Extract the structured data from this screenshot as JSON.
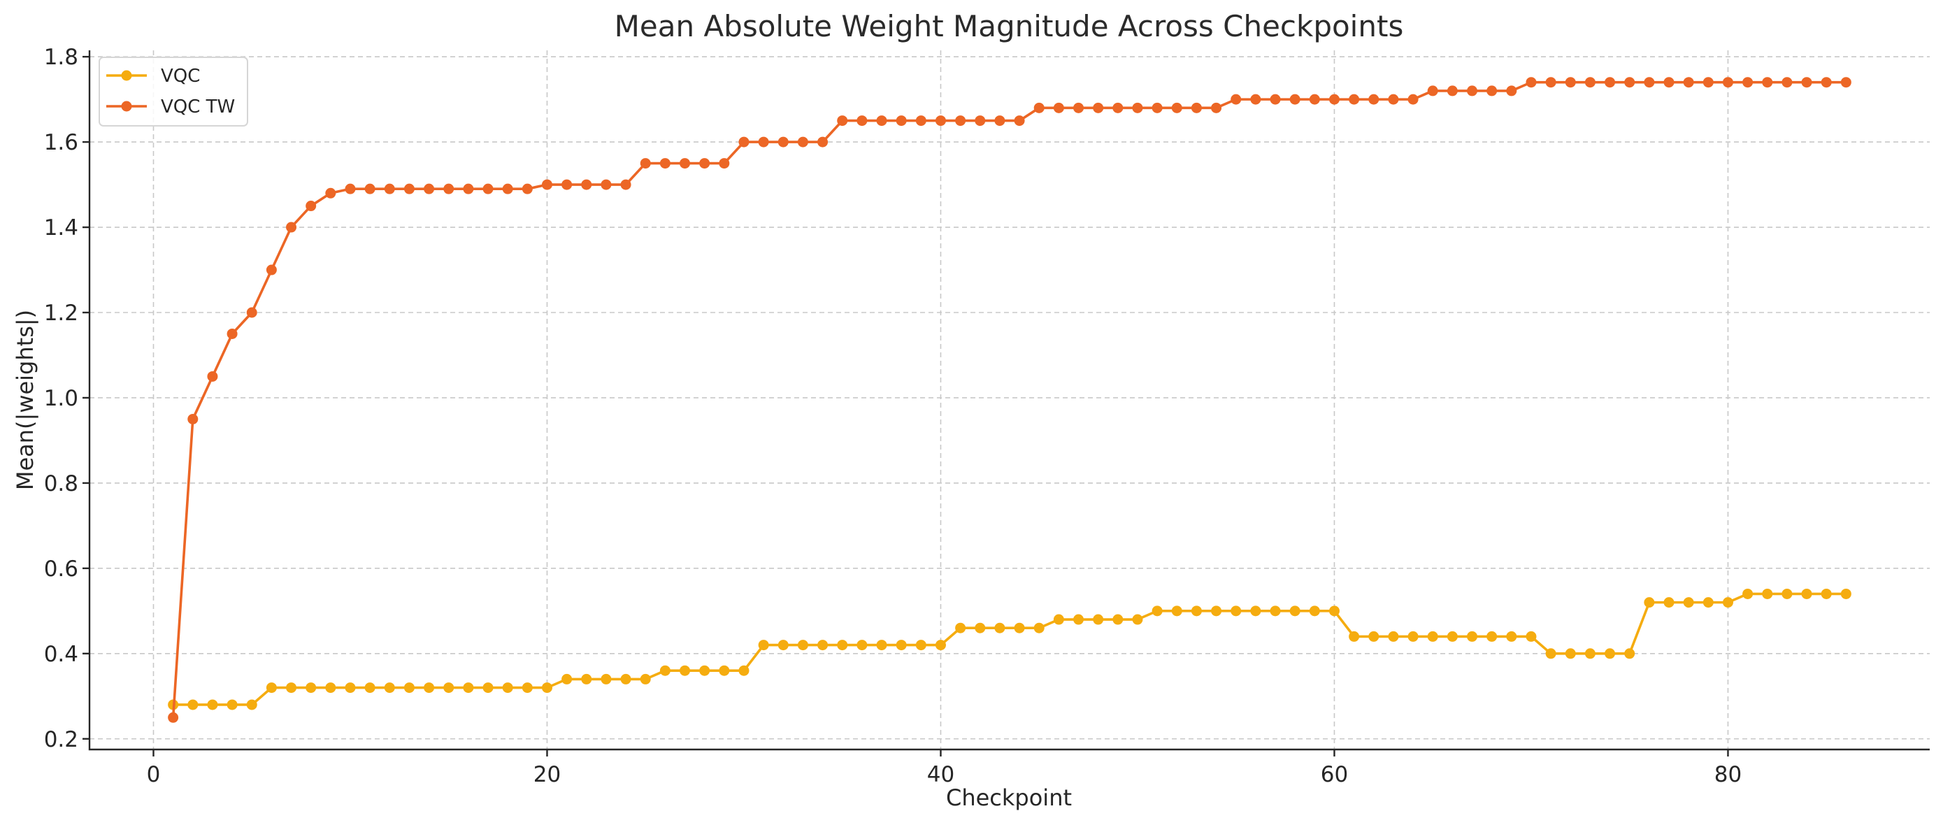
{
  "chart_data": {
    "type": "line",
    "title": "Mean Absolute Weight Magnitude Across Checkpoints",
    "xlabel": "Checkpoint",
    "ylabel": "Mean(|weights|)",
    "xlim": [
      -3.25,
      90.25
    ],
    "ylim": [
      0.175,
      1.815
    ],
    "xticks": [
      0,
      20,
      40,
      60,
      80
    ],
    "yticks": [
      0.2,
      0.4,
      0.6,
      0.8,
      1.0,
      1.2,
      1.4,
      1.6,
      1.8
    ],
    "xtick_labels": [
      "0",
      "20",
      "40",
      "60",
      "80"
    ],
    "ytick_labels": [
      "0.2",
      "0.4",
      "0.6",
      "0.8",
      "1.0",
      "1.2",
      "1.4",
      "1.6",
      "1.8"
    ],
    "grid": true,
    "legend_position": "top-left",
    "x": [
      1,
      2,
      3,
      4,
      5,
      6,
      7,
      8,
      9,
      10,
      11,
      12,
      13,
      14,
      15,
      16,
      17,
      18,
      19,
      20,
      21,
      22,
      23,
      24,
      25,
      26,
      27,
      28,
      29,
      30,
      31,
      32,
      33,
      34,
      35,
      36,
      37,
      38,
      39,
      40,
      41,
      42,
      43,
      44,
      45,
      46,
      47,
      48,
      49,
      50,
      51,
      52,
      53,
      54,
      55,
      56,
      57,
      58,
      59,
      60,
      61,
      62,
      63,
      64,
      65,
      66,
      67,
      68,
      69,
      70,
      71,
      72,
      73,
      74,
      75,
      76,
      77,
      78,
      79,
      80,
      81,
      82,
      83,
      84,
      85,
      86
    ],
    "series": [
      {
        "name": "VQC",
        "color": "#f5ac0f",
        "values": [
          0.28,
          0.28,
          0.28,
          0.28,
          0.28,
          0.32,
          0.32,
          0.32,
          0.32,
          0.32,
          0.32,
          0.32,
          0.32,
          0.32,
          0.32,
          0.32,
          0.32,
          0.32,
          0.32,
          0.32,
          0.34,
          0.34,
          0.34,
          0.34,
          0.34,
          0.36,
          0.36,
          0.36,
          0.36,
          0.36,
          0.42,
          0.42,
          0.42,
          0.42,
          0.42,
          0.42,
          0.42,
          0.42,
          0.42,
          0.42,
          0.46,
          0.46,
          0.46,
          0.46,
          0.46,
          0.48,
          0.48,
          0.48,
          0.48,
          0.48,
          0.5,
          0.5,
          0.5,
          0.5,
          0.5,
          0.5,
          0.5,
          0.5,
          0.5,
          0.5,
          0.44,
          0.44,
          0.44,
          0.44,
          0.44,
          0.44,
          0.44,
          0.44,
          0.44,
          0.44,
          0.4,
          0.4,
          0.4,
          0.4,
          0.4,
          0.52,
          0.52,
          0.52,
          0.52,
          0.52,
          0.54,
          0.54,
          0.54,
          0.54,
          0.54,
          0.54
        ]
      },
      {
        "name": "VQC TW",
        "color": "#ec6625",
        "values": [
          0.25,
          0.95,
          1.05,
          1.15,
          1.2,
          1.3,
          1.4,
          1.45,
          1.48,
          1.49,
          1.49,
          1.49,
          1.49,
          1.49,
          1.49,
          1.49,
          1.49,
          1.49,
          1.49,
          1.5,
          1.5,
          1.5,
          1.5,
          1.5,
          1.55,
          1.55,
          1.55,
          1.55,
          1.55,
          1.6,
          1.6,
          1.6,
          1.6,
          1.6,
          1.65,
          1.65,
          1.65,
          1.65,
          1.65,
          1.65,
          1.65,
          1.65,
          1.65,
          1.65,
          1.68,
          1.68,
          1.68,
          1.68,
          1.68,
          1.68,
          1.68,
          1.68,
          1.68,
          1.68,
          1.7,
          1.7,
          1.7,
          1.7,
          1.7,
          1.7,
          1.7,
          1.7,
          1.7,
          1.7,
          1.72,
          1.72,
          1.72,
          1.72,
          1.72,
          1.74,
          1.74,
          1.74,
          1.74,
          1.74,
          1.74,
          1.74,
          1.74,
          1.74,
          1.74,
          1.74,
          1.74,
          1.74,
          1.74,
          1.74,
          1.74,
          1.74
        ]
      }
    ]
  }
}
